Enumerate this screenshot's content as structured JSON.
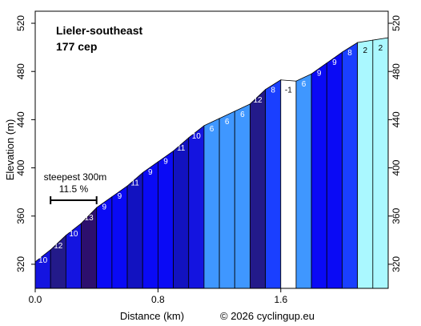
{
  "chart_data": {
    "type": "area",
    "title": "Lieler-southeast",
    "subtitle": "177 сер",
    "xlabel": "Distance (km)",
    "ylabel": "Elevation (m)",
    "credit": "© 2026 cyclingup.eu",
    "xlim": [
      0,
      2.3
    ],
    "ylim": [
      300,
      530
    ],
    "xticks": [
      0.0,
      0.8,
      1.6
    ],
    "xtick_labels": [
      "0.0",
      "0.8",
      "1.6"
    ],
    "yticks": [
      320,
      360,
      400,
      440,
      480,
      520
    ],
    "ytick_labels": [
      "320",
      "360",
      "400",
      "440",
      "480",
      "520"
    ],
    "steepest": {
      "label": "steepest 300m",
      "value": "11.5 %",
      "x_start": 0.1,
      "x_end": 0.4
    },
    "gradient_colors": {
      "-1": "#ffffff",
      "2": "#aaf8ff",
      "6": "#3f97ff",
      "8": "#1a3fff",
      "9": "#0a0af5",
      "10": "#1414e0",
      "11": "#1212c0",
      "12": "#231a8a",
      "13": "#2d0f6e"
    },
    "segments": [
      {
        "x0": 0.0,
        "x1": 0.1,
        "y0": 322.0,
        "y1": 332.0,
        "grade": 10,
        "label": "10"
      },
      {
        "x0": 0.1,
        "x1": 0.2,
        "y0": 332.0,
        "y1": 344.0,
        "grade": 12,
        "label": "12"
      },
      {
        "x0": 0.2,
        "x1": 0.3,
        "y0": 344.0,
        "y1": 354.0,
        "grade": 10,
        "label": "10"
      },
      {
        "x0": 0.3,
        "x1": 0.4,
        "y0": 354.0,
        "y1": 367.0,
        "grade": 13,
        "label": "13"
      },
      {
        "x0": 0.4,
        "x1": 0.5,
        "y0": 367.0,
        "y1": 376.0,
        "grade": 9,
        "label": "9"
      },
      {
        "x0": 0.5,
        "x1": 0.6,
        "y0": 376.0,
        "y1": 385.0,
        "grade": 9,
        "label": "9"
      },
      {
        "x0": 0.6,
        "x1": 0.7,
        "y0": 385.0,
        "y1": 396.0,
        "grade": 11,
        "label": "11"
      },
      {
        "x0": 0.7,
        "x1": 0.8,
        "y0": 396.0,
        "y1": 405.0,
        "grade": 9,
        "label": "9"
      },
      {
        "x0": 0.8,
        "x1": 0.9,
        "y0": 405.0,
        "y1": 414.0,
        "grade": 9,
        "label": "9"
      },
      {
        "x0": 0.9,
        "x1": 1.0,
        "y0": 414.0,
        "y1": 425.0,
        "grade": 11,
        "label": "11"
      },
      {
        "x0": 1.0,
        "x1": 1.1,
        "y0": 425.0,
        "y1": 435.0,
        "grade": 10,
        "label": "10"
      },
      {
        "x0": 1.1,
        "x1": 1.2,
        "y0": 435.0,
        "y1": 441.0,
        "grade": 6,
        "label": "6"
      },
      {
        "x0": 1.2,
        "x1": 1.3,
        "y0": 441.0,
        "y1": 447.0,
        "grade": 6,
        "label": "6"
      },
      {
        "x0": 1.3,
        "x1": 1.4,
        "y0": 447.0,
        "y1": 453.0,
        "grade": 6,
        "label": "6"
      },
      {
        "x0": 1.4,
        "x1": 1.5,
        "y0": 453.0,
        "y1": 465.0,
        "grade": 12,
        "label": "12"
      },
      {
        "x0": 1.5,
        "x1": 1.6,
        "y0": 465.0,
        "y1": 473.0,
        "grade": 8,
        "label": "8"
      },
      {
        "x0": 1.6,
        "x1": 1.7,
        "y0": 473.0,
        "y1": 472.0,
        "grade": -1,
        "label": "-1"
      },
      {
        "x0": 1.7,
        "x1": 1.8,
        "y0": 472.0,
        "y1": 478.0,
        "grade": 6,
        "label": "6"
      },
      {
        "x0": 1.8,
        "x1": 1.9,
        "y0": 478.0,
        "y1": 487.0,
        "grade": 9,
        "label": "9"
      },
      {
        "x0": 1.9,
        "x1": 2.0,
        "y0": 487.0,
        "y1": 496.0,
        "grade": 9,
        "label": "9"
      },
      {
        "x0": 2.0,
        "x1": 2.1,
        "y0": 496.0,
        "y1": 504.0,
        "grade": 8,
        "label": "8"
      },
      {
        "x0": 2.1,
        "x1": 2.2,
        "y0": 504.0,
        "y1": 506.0,
        "grade": 2,
        "label": "2"
      },
      {
        "x0": 2.2,
        "x1": 2.3,
        "y0": 506.0,
        "y1": 508.0,
        "grade": 2,
        "label": "2"
      }
    ]
  }
}
